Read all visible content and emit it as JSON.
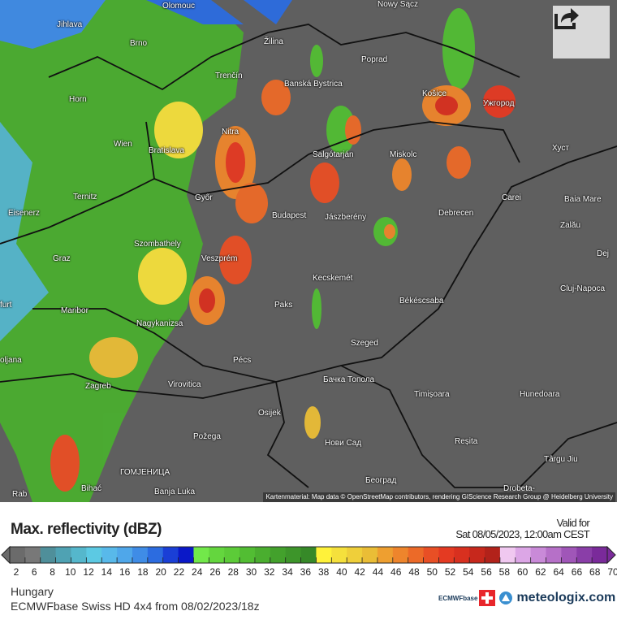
{
  "map": {
    "cities": [
      {
        "name": "Olomouc"
      },
      {
        "name": "Nowy Sącz"
      },
      {
        "name": "Jihlava"
      },
      {
        "name": "Brno"
      },
      {
        "name": "Žilina"
      },
      {
        "name": "Poprad"
      },
      {
        "name": "Horn"
      },
      {
        "name": "Trenčín"
      },
      {
        "name": "Banská Bystrica"
      },
      {
        "name": "Košice"
      },
      {
        "name": "Ужгород"
      },
      {
        "name": "Wien"
      },
      {
        "name": "Bratislava"
      },
      {
        "name": "Nitra"
      },
      {
        "name": "Salgótarján"
      },
      {
        "name": "Miskolc"
      },
      {
        "name": "Хуст"
      },
      {
        "name": "Ternitz"
      },
      {
        "name": "Győr"
      },
      {
        "name": "Carei"
      },
      {
        "name": "Baia Mare"
      },
      {
        "name": "Eisenerz"
      },
      {
        "name": "Budapest"
      },
      {
        "name": "Jászberény"
      },
      {
        "name": "Debrecen"
      },
      {
        "name": "Zalău"
      },
      {
        "name": "Szombathely"
      },
      {
        "name": "Graz"
      },
      {
        "name": "Veszprém"
      },
      {
        "name": "Dej"
      },
      {
        "name": "Kecskemét"
      },
      {
        "name": "Cluj-Napoca"
      },
      {
        "name": "furt"
      },
      {
        "name": "Maribor"
      },
      {
        "name": "Paks"
      },
      {
        "name": "Békéscsaba"
      },
      {
        "name": "Nagykanizsa"
      },
      {
        "name": "Szeged"
      },
      {
        "name": "oljana"
      },
      {
        "name": "Pécs"
      },
      {
        "name": "Бачка Топола"
      },
      {
        "name": "Zagreb"
      },
      {
        "name": "Virovitica"
      },
      {
        "name": "Timișoara"
      },
      {
        "name": "Hunedoara"
      },
      {
        "name": "Osijek"
      },
      {
        "name": "Нови Сад"
      },
      {
        "name": "Požega"
      },
      {
        "name": "Reșita"
      },
      {
        "name": "Târgu Jiu"
      },
      {
        "name": "ГОМЈЕНИЦА"
      },
      {
        "name": "Bihać"
      },
      {
        "name": "Banja Luka"
      },
      {
        "name": "Београд"
      },
      {
        "name": "Drobeta-"
      },
      {
        "name": "Rab"
      }
    ],
    "attribution": "Kartenmaterial: Map data © OpenStreetMap contributors, rendering GIScience Research Group @ Heidelberg University",
    "share_icon": "share-icon"
  },
  "legend": {
    "title": "Max. reflectivity (dBZ)",
    "valid_label": "Valid for",
    "valid_time": "Sat 08/05/2023, 12:00am CEST",
    "ticks": [
      "2",
      "6",
      "8",
      "10",
      "12",
      "14",
      "16",
      "18",
      "20",
      "22",
      "24",
      "26",
      "28",
      "30",
      "32",
      "34",
      "36",
      "38",
      "40",
      "42",
      "44",
      "46",
      "48",
      "50",
      "52",
      "54",
      "56",
      "58",
      "60",
      "62",
      "64",
      "66",
      "68",
      "70"
    ],
    "colors": [
      "#6b6b6b",
      "#787878",
      "#4f8f9a",
      "#4fa2b3",
      "#55b7cc",
      "#5cc9e3",
      "#58b9ea",
      "#4fa7ea",
      "#3f8ce6",
      "#2c6ce0",
      "#1a3fd6",
      "#0a18c8",
      "#72e84a",
      "#64d63e",
      "#5ccb38",
      "#52bd33",
      "#4aae2f",
      "#43a12c",
      "#3d952a",
      "#368928",
      "#fff23a",
      "#f5e03c",
      "#efcf3a",
      "#eabd36",
      "#ee9f30",
      "#ee852c",
      "#ec6a28",
      "#e84f25",
      "#e43a22",
      "#d8301f",
      "#c7281c",
      "#b2221a",
      "#f0c8f0",
      "#dca6e6",
      "#c98ad8",
      "#b670c8",
      "#a056b8",
      "#8a3ea8",
      "#7a2a9a"
    ]
  },
  "footer": {
    "region": "Hungary",
    "model": "ECMWFbase Swiss HD 4x4 from 08/02/2023/18z",
    "logo_small": "ECMWFbase",
    "brand": "meteologix.com"
  }
}
